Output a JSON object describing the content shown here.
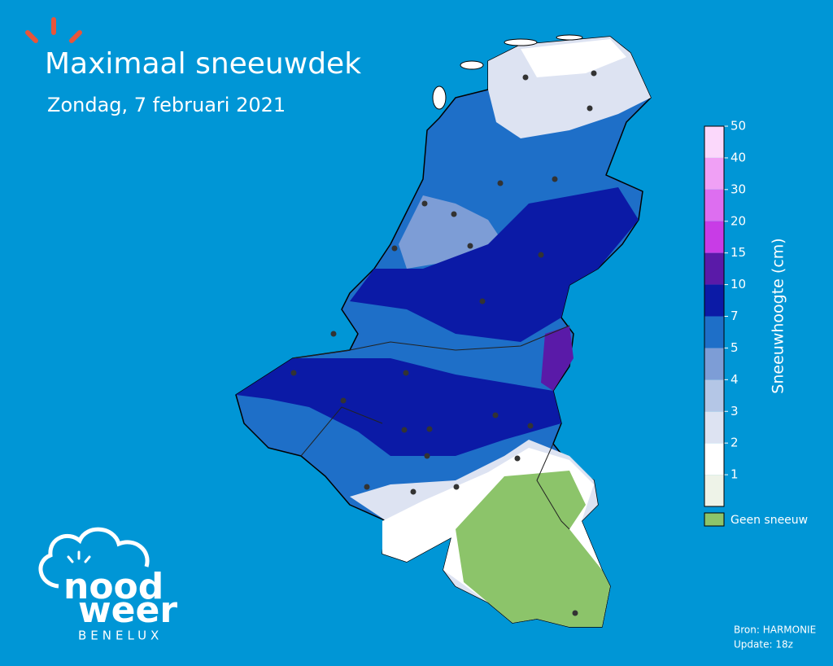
{
  "header": {
    "title": "Maximaal sneeuwdek",
    "subtitle": "Zondag, 7 februari 2021"
  },
  "colorbar": {
    "label": "Sneeuwhoogte (cm)",
    "ticks": [
      1,
      2,
      3,
      4,
      5,
      7,
      10,
      15,
      20,
      30,
      40,
      50
    ],
    "colors": [
      "#eef3e8",
      "#ffffff",
      "#dde3f2",
      "#b4c6e6",
      "#7d9dd6",
      "#1e6fc8",
      "#0b1aa6",
      "#5a1aa8",
      "#c83ce6",
      "#dd6ef0",
      "#f0a0f5",
      "#fbd8fb"
    ]
  },
  "legend": {
    "label": "Geen sneeuw",
    "color": "#8cc46a"
  },
  "source": [
    "Bron: HARMONIE",
    "Update: 18z"
  ],
  "logo": {
    "line1": "nood",
    "line2": "weer",
    "tagline": "BENELUX"
  }
}
